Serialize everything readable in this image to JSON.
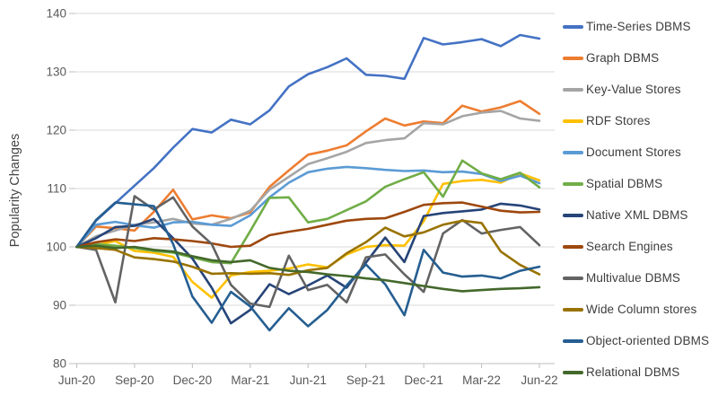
{
  "chart_data": {
    "type": "line",
    "title": "",
    "ylabel": "Popularity Changes",
    "xlabel": "",
    "ylim": [
      80,
      140
    ],
    "y_ticks": [
      80,
      90,
      100,
      110,
      120,
      130,
      140
    ],
    "grid": "horizontal",
    "legend_position": "right",
    "x": [
      "Jun-20",
      "Jul-20",
      "Aug-20",
      "Sep-20",
      "Oct-20",
      "Nov-20",
      "Dec-20",
      "Jan-21",
      "Feb-21",
      "Mar-21",
      "Apr-21",
      "May-21",
      "Jun-21",
      "Jul-21",
      "Aug-21",
      "Sep-21",
      "Oct-21",
      "Nov-21",
      "Dec-21",
      "Jan-22",
      "Feb-22",
      "Mar-22",
      "Apr-22",
      "May-22",
      "Jun-22"
    ],
    "x_tick_labels": [
      "Jun-20",
      "Sep-20",
      "Dec-20",
      "Mar-21",
      "Jun-21",
      "Sep-21",
      "Dec-21",
      "Mar-22",
      "Jun-22"
    ],
    "x_tick_every": 3,
    "axis_text_color": "#595959",
    "grid_color": "#d9d9d9",
    "axis_line_color": "#bfbfbf",
    "series": [
      {
        "name": "Time-Series DBMS",
        "color": "#4472c4",
        "values": [
          100,
          104.5,
          107.5,
          110.5,
          113.5,
          117,
          120.2,
          119.6,
          121.8,
          121,
          123.4,
          127.5,
          129.6,
          130.8,
          132.3,
          129.5,
          129.3,
          128.8,
          135.8,
          134.7,
          135.1,
          135.6,
          134.4,
          136.3,
          135.7
        ]
      },
      {
        "name": "Graph DBMS",
        "color": "#ed7d31",
        "values": [
          100,
          103.5,
          103.2,
          102.8,
          106,
          109.8,
          104.7,
          105.4,
          104.9,
          105.9,
          110.3,
          113.1,
          115.8,
          116.5,
          117.4,
          119.8,
          122,
          120.8,
          121.5,
          121.2,
          124.2,
          123.2,
          123.9,
          125,
          122.8
        ]
      },
      {
        "name": "Key-Value Stores",
        "color": "#a5a5a5",
        "values": [
          100,
          101.8,
          102.8,
          103.8,
          104.2,
          104.8,
          104,
          103.8,
          104.8,
          106.2,
          109.8,
          112,
          114.2,
          115.2,
          116.3,
          117.8,
          118.3,
          118.6,
          121.2,
          121,
          122.4,
          123,
          123.3,
          122,
          121.6
        ]
      },
      {
        "name": "RDF Stores",
        "color": "#ffc000",
        "values": [
          100,
          100.3,
          101,
          99.3,
          99,
          98.3,
          94,
          91.3,
          95.1,
          95.7,
          95.9,
          96.3,
          97,
          96.5,
          98.7,
          100,
          100.3,
          100.2,
          104.4,
          110.8,
          111.3,
          111.5,
          111,
          112.6,
          111.4
        ]
      },
      {
        "name": "Document Stores",
        "color": "#5b9bd5",
        "values": [
          100,
          103.8,
          104.3,
          103.7,
          103.3,
          104.2,
          104.3,
          103.8,
          103.6,
          105.4,
          108.5,
          111,
          112.8,
          113.4,
          113.7,
          113.5,
          113.2,
          113,
          113.1,
          112.8,
          112.9,
          112.5,
          111.3,
          112.2,
          110.9
        ]
      },
      {
        "name": "Spatial DBMS",
        "color": "#70ad47",
        "values": [
          100,
          100.5,
          100.2,
          99.8,
          99.3,
          99,
          98.2,
          97.4,
          97.2,
          102.7,
          108.4,
          108.5,
          104.2,
          104.8,
          106.3,
          107.8,
          110.3,
          111.6,
          112.8,
          108.6,
          114.8,
          112.6,
          111.6,
          112.7,
          110.2
        ]
      },
      {
        "name": "Native XML DBMS",
        "color": "#264478",
        "values": [
          100,
          101.5,
          103.4,
          103.6,
          104.8,
          101.5,
          98,
          93,
          86.9,
          89.2,
          93.6,
          91.9,
          93.4,
          95.1,
          93,
          97.3,
          101.6,
          97.4,
          105.3,
          105.8,
          106.1,
          106.4,
          107.4,
          107.1,
          106.4
        ]
      },
      {
        "name": "Search Engines",
        "color": "#9e480e",
        "values": [
          100,
          100.8,
          101.3,
          101,
          101.5,
          101.3,
          101,
          100.6,
          100,
          100.2,
          102,
          102.6,
          103.1,
          103.8,
          104.5,
          104.8,
          104.9,
          106,
          107.2,
          107.5,
          107.6,
          106.9,
          106.2,
          105.9,
          106
        ]
      },
      {
        "name": "Multivalue DBMS",
        "color": "#636363",
        "values": [
          100,
          99.5,
          90.5,
          108.7,
          106.4,
          108.5,
          103.5,
          100.5,
          93.5,
          90.3,
          89.7,
          98.5,
          92.6,
          93.5,
          90.5,
          98.2,
          98.7,
          95.3,
          92.3,
          102.3,
          104.6,
          102.3,
          102.9,
          103.4,
          100.3
        ]
      },
      {
        "name": "Wide Column stores",
        "color": "#997300",
        "values": [
          100,
          99.8,
          99.5,
          98.2,
          97.9,
          97.5,
          96.6,
          95.4,
          95.5,
          95.4,
          95.5,
          95.2,
          96,
          96.4,
          98.9,
          100.8,
          103.3,
          101.8,
          102.5,
          103.8,
          104.5,
          104.1,
          99.2,
          96.9,
          95.3
        ]
      },
      {
        "name": "Object-oriented DBMS",
        "color": "#255e91",
        "values": [
          100,
          104.6,
          107.6,
          107.3,
          107,
          100.5,
          91.5,
          87,
          92.3,
          89.8,
          85.7,
          89.5,
          86.4,
          89.2,
          93.4,
          97,
          93.6,
          88.3,
          99.5,
          95.6,
          94.9,
          95.1,
          94.6,
          95.9,
          96.6
        ]
      },
      {
        "name": "Relational DBMS",
        "color": "#43682b",
        "values": [
          100,
          100.2,
          99.8,
          100,
          99.5,
          99.2,
          98.4,
          97.7,
          97.4,
          97.7,
          96.4,
          95.9,
          95.7,
          95.3,
          95,
          94.6,
          94.3,
          93.8,
          93.3,
          92.8,
          92.4,
          92.6,
          92.8,
          92.9,
          93.1
        ]
      }
    ]
  }
}
